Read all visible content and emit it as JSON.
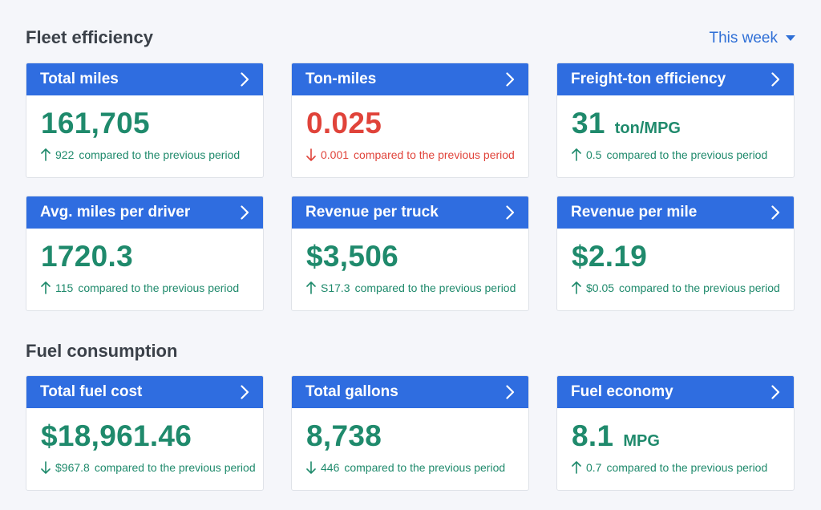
{
  "sections": {
    "fleet": {
      "title": "Fleet efficiency"
    },
    "fuel": {
      "title": "Fuel consumption"
    }
  },
  "period_select": {
    "label": "This week"
  },
  "compare_suffix": "compared to the previous period",
  "colors": {
    "header": "#2f6de0",
    "positive": "#1f8a6c",
    "negative": "#e0433a",
    "link": "#2f6fd6"
  },
  "cards": [
    {
      "title": "Total miles",
      "value": "161,705",
      "unit": "",
      "delta": "922",
      "direction": "up",
      "tone": "positive"
    },
    {
      "title": "Ton-miles",
      "value": "0.025",
      "unit": "",
      "delta": "0.001",
      "direction": "down",
      "tone": "negative"
    },
    {
      "title": "Freight-ton efficiency",
      "value": "31",
      "unit": "ton/MPG",
      "delta": "0.5",
      "direction": "up",
      "tone": "positive"
    },
    {
      "title": "Avg. miles per driver",
      "value": "1720.3",
      "unit": "",
      "delta": "115",
      "direction": "up",
      "tone": "positive"
    },
    {
      "title": "Revenue per truck",
      "value": "$3,506",
      "unit": "",
      "delta": "S17.3",
      "direction": "up",
      "tone": "positive"
    },
    {
      "title": "Revenue per mile",
      "value": "$2.19",
      "unit": "",
      "delta": "$0.05",
      "direction": "up",
      "tone": "positive"
    },
    {
      "title": "Total fuel cost",
      "value": "$18,961.46",
      "unit": "",
      "delta": "$967.8",
      "direction": "down",
      "tone": "positive"
    },
    {
      "title": "Total gallons",
      "value": "8,738",
      "unit": "",
      "delta": "446",
      "direction": "down",
      "tone": "positive"
    },
    {
      "title": "Fuel economy",
      "value": "8.1",
      "unit": "MPG",
      "delta": "0.7",
      "direction": "up",
      "tone": "positive"
    }
  ]
}
